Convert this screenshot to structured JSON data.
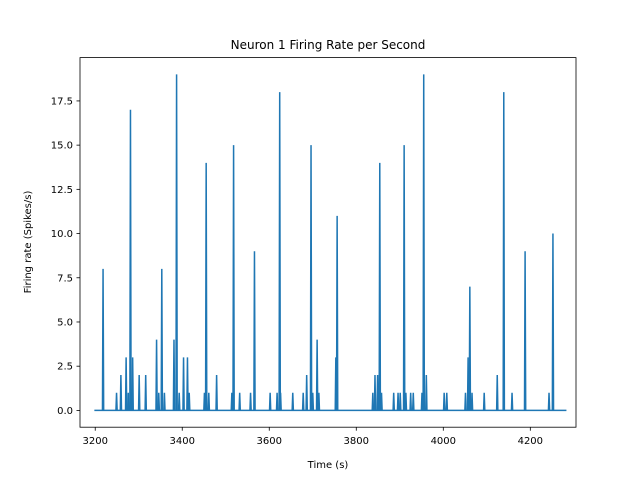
{
  "chart_data": {
    "type": "line",
    "title": "Neuron 1 Firing Rate per Second",
    "xlabel": "Time (s)",
    "ylabel": "Firing rate (Spikes/s)",
    "xlim": [
      3165,
      4305
    ],
    "ylim": [
      -0.95,
      19.95
    ],
    "xticks": [
      3200,
      3400,
      3600,
      3800,
      4000,
      4200
    ],
    "xtick_labels": [
      "3200",
      "3400",
      "3600",
      "3800",
      "4000",
      "4200"
    ],
    "yticks": [
      0.0,
      2.5,
      5.0,
      7.5,
      10.0,
      12.5,
      15.0,
      17.5
    ],
    "ytick_labels": [
      "0.0",
      "2.5",
      "5.0",
      "7.5",
      "10.0",
      "12.5",
      "15.0",
      "17.5"
    ],
    "grid": false,
    "series": [
      {
        "color": "#1f77b4",
        "x_start": 3198,
        "x_end": 4283,
        "baseline": 0,
        "spikes": [
          [
            3218,
            8
          ],
          [
            3249,
            1
          ],
          [
            3259,
            2
          ],
          [
            3271,
            3
          ],
          [
            3276,
            1
          ],
          [
            3281,
            17
          ],
          [
            3286,
            3
          ],
          [
            3301,
            2
          ],
          [
            3316,
            2
          ],
          [
            3341,
            4
          ],
          [
            3346,
            1
          ],
          [
            3353,
            8
          ],
          [
            3359,
            1
          ],
          [
            3381,
            4
          ],
          [
            3387,
            19
          ],
          [
            3393,
            1
          ],
          [
            3403,
            3
          ],
          [
            3412,
            3
          ],
          [
            3416,
            1
          ],
          [
            3451,
            1
          ],
          [
            3455,
            14
          ],
          [
            3461,
            1
          ],
          [
            3479,
            2
          ],
          [
            3514,
            1
          ],
          [
            3518,
            15
          ],
          [
            3532,
            1
          ],
          [
            3557,
            1
          ],
          [
            3566,
            9
          ],
          [
            3602,
            1
          ],
          [
            3618,
            1
          ],
          [
            3624,
            18
          ],
          [
            3626,
            1
          ],
          [
            3654,
            1
          ],
          [
            3678,
            1
          ],
          [
            3686,
            2
          ],
          [
            3696,
            15
          ],
          [
            3700,
            1
          ],
          [
            3710,
            4
          ],
          [
            3714,
            1
          ],
          [
            3753,
            3
          ],
          [
            3756,
            11
          ],
          [
            3838,
            1
          ],
          [
            3843,
            2
          ],
          [
            3849,
            2
          ],
          [
            3854,
            14
          ],
          [
            3858,
            1
          ],
          [
            3886,
            1
          ],
          [
            3896,
            1
          ],
          [
            3901,
            1
          ],
          [
            3910,
            15
          ],
          [
            3914,
            1
          ],
          [
            3925,
            1
          ],
          [
            3931,
            1
          ],
          [
            3951,
            1
          ],
          [
            3955,
            19
          ],
          [
            3961,
            2
          ],
          [
            4002,
            1
          ],
          [
            4008,
            1
          ],
          [
            4051,
            1
          ],
          [
            4057,
            3
          ],
          [
            4061,
            7
          ],
          [
            4066,
            1
          ],
          [
            4094,
            1
          ],
          [
            4124,
            2
          ],
          [
            4139,
            18
          ],
          [
            4158,
            1
          ],
          [
            4188,
            9
          ],
          [
            4243,
            1
          ],
          [
            4252,
            10
          ]
        ]
      }
    ]
  }
}
